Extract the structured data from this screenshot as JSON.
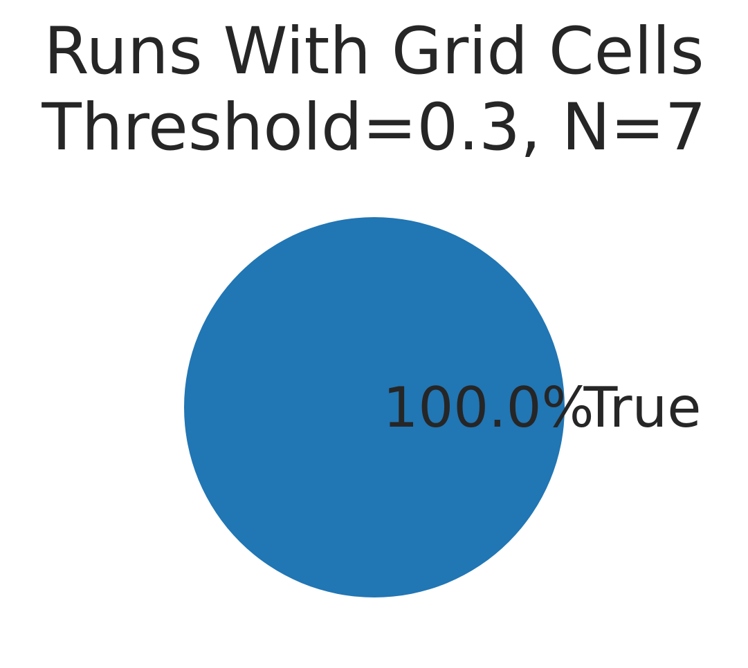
{
  "chart_data": {
    "type": "pie",
    "title_lines": [
      "Runs With Grid Cells",
      "Threshold=0.3, N=7"
    ],
    "slices": [
      {
        "label": "True",
        "value": 100.0,
        "pct_label": "100.0%",
        "color": "#2176b4"
      }
    ],
    "legend": "none"
  }
}
